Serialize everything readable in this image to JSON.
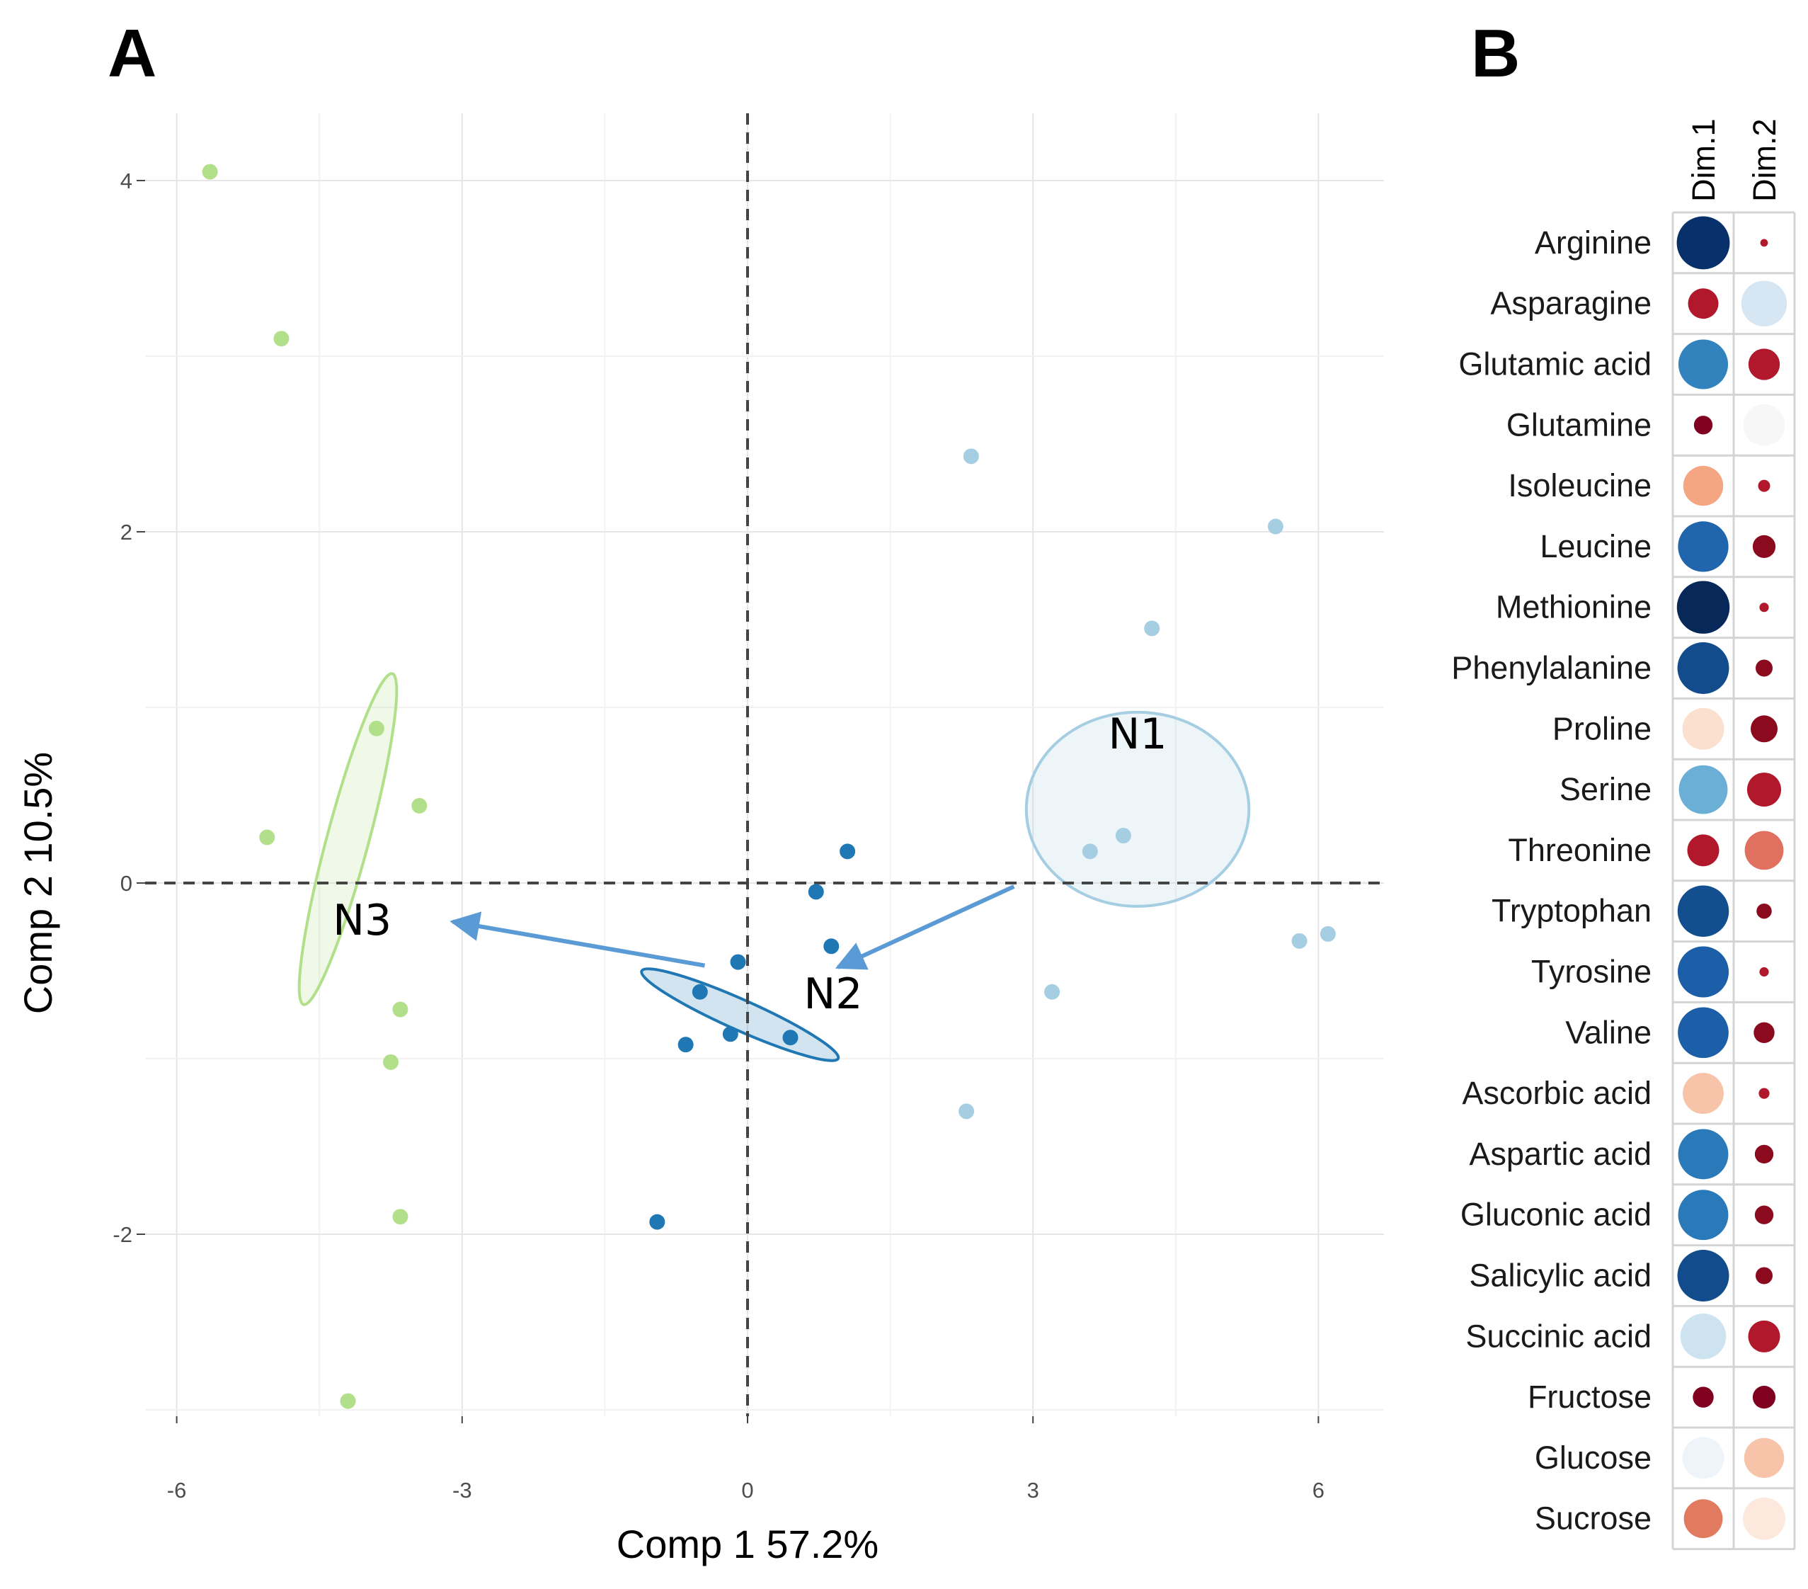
{
  "panel_a_letter": "A",
  "panel_b_letter": "B",
  "colors": {
    "N1": "#a6cee3",
    "N2": "#1f78b4",
    "N3": "#b2df8a",
    "arrow": "#5b9bd5",
    "grid": "#ebebeb",
    "refline": "#444444"
  },
  "chart_data": [
    {
      "type": "scatter",
      "title": "",
      "xlabel": "Comp 1 57.2%",
      "ylabel": "Comp 2 10.5%",
      "xlim": [
        -6.6,
        6.2
      ],
      "ylim": [
        -3.3,
        4.45
      ],
      "xticks": [
        -6,
        -3,
        0,
        3,
        6
      ],
      "xtick_labels": [
        "-6",
        "-3",
        "0",
        "3",
        "6"
      ],
      "yticks": [
        -2,
        0,
        2,
        4
      ],
      "ytick_labels": [
        "-2",
        "0",
        "2",
        "4"
      ],
      "reference_lines": {
        "x": 0,
        "y": 0
      },
      "series": [
        {
          "name": "N1",
          "color": "#a6cee3",
          "points": [
            [
              2.35,
              2.43
            ],
            [
              5.55,
              2.03
            ],
            [
              4.25,
              1.45
            ],
            [
              3.6,
              0.18
            ],
            [
              3.95,
              0.27
            ],
            [
              5.8,
              -0.33
            ],
            [
              6.1,
              -0.29
            ],
            [
              3.2,
              -0.62
            ],
            [
              2.3,
              -1.3
            ]
          ],
          "ellipse": {
            "center": [
              4.1,
              0.42
            ],
            "semi_axes": [
              1.17,
              1.02
            ],
            "rotation_deg": 0
          }
        },
        {
          "name": "N2",
          "color": "#1f78b4",
          "points": [
            [
              1.05,
              0.18
            ],
            [
              0.72,
              -0.05
            ],
            [
              0.88,
              -0.36
            ],
            [
              -0.1,
              -0.45
            ],
            [
              -0.5,
              -0.62
            ],
            [
              -0.18,
              -0.86
            ],
            [
              0.45,
              -0.88
            ],
            [
              -0.65,
              -0.92
            ],
            [
              -0.95,
              -1.93
            ]
          ],
          "ellipse": {
            "center": [
              -0.08,
              -0.75
            ],
            "semi_axes": [
              1.13,
              0.16
            ],
            "rotation_deg": 24
          }
        },
        {
          "name": "N3",
          "color": "#b2df8a",
          "points": [
            [
              -5.65,
              4.05
            ],
            [
              -4.9,
              3.1
            ],
            [
              -3.9,
              0.88
            ],
            [
              -3.45,
              0.44
            ],
            [
              -5.05,
              0.26
            ],
            [
              -3.65,
              -0.72
            ],
            [
              -3.75,
              -1.02
            ],
            [
              -3.65,
              -1.9
            ],
            [
              -4.2,
              -2.95
            ]
          ],
          "ellipse": {
            "center": [
              -4.2,
              0.25
            ],
            "semi_axes": [
              1.8,
              0.22
            ],
            "rotation_deg": -75
          }
        }
      ],
      "annotations": [
        {
          "text": "N1",
          "x": 4.1,
          "y": 0.85
        },
        {
          "text": "N2",
          "x": 0.9,
          "y": -0.63
        },
        {
          "text": "N3",
          "x": -4.05,
          "y": -0.21
        }
      ],
      "arrows": [
        {
          "from": [
            2.8,
            -0.02
          ],
          "to": [
            0.95,
            -0.48
          ]
        },
        {
          "from": [
            -0.45,
            -0.47
          ],
          "to": [
            -3.1,
            -0.22
          ]
        }
      ]
    },
    {
      "type": "heatmap",
      "style": "correlation-circles",
      "columns": [
        "Dim.1",
        "Dim.2"
      ],
      "rows": [
        "Arginine",
        "Asparagine",
        "Glutamic acid",
        "Glutamine",
        "Isoleucine",
        "Leucine",
        "Methionine",
        "Phenylalanine",
        "Proline",
        "Serine",
        "Threonine",
        "Tryptophan",
        "Tyrosine",
        "Valine",
        "Ascorbic acid",
        "Aspartic acid",
        "Gluconic acid",
        "Salicylic acid",
        "Succinic acid",
        "Fructose",
        "Glucose",
        "Sucrose"
      ],
      "values": [
        [
          0.97,
          0.02
        ],
        [
          -0.32,
          0.72
        ],
        [
          0.85,
          -0.34
        ],
        [
          0.12,
          0.6
        ],
        [
          -0.55,
          0.05
        ],
        [
          0.88,
          -0.18
        ],
        [
          0.96,
          0.03
        ],
        [
          0.92,
          -0.1
        ],
        [
          -0.6,
          -0.25
        ],
        [
          0.82,
          -0.4
        ],
        [
          -0.35,
          -0.52
        ],
        [
          0.91,
          -0.08
        ],
        [
          0.9,
          0.03
        ],
        [
          0.89,
          -0.15
        ],
        [
          -0.58,
          0.04
        ],
        [
          0.87,
          -0.12
        ],
        [
          0.87,
          -0.12
        ],
        [
          0.92,
          -0.1
        ],
        [
          0.72,
          -0.35
        ],
        [
          -0.15,
          -0.18
        ],
        [
          0.6,
          -0.55
        ],
        [
          -0.52,
          -0.62
        ]
      ],
      "colors": [
        [
          "#08306b",
          "#b2182b"
        ],
        [
          "#b2182b",
          "#d6e6f2"
        ],
        [
          "#3182bd",
          "#b2182b"
        ],
        [
          "#800020",
          "#f7f7f7"
        ],
        [
          "#f4a582",
          "#b2182b"
        ],
        [
          "#2166ac",
          "#8b0a1e"
        ],
        [
          "#08285a",
          "#b2182b"
        ],
        [
          "#124c8c",
          "#8b0a1e"
        ],
        [
          "#fbe0d0",
          "#8b0a1e"
        ],
        [
          "#6baed6",
          "#b2182b"
        ],
        [
          "#b2182b",
          "#e07060"
        ],
        [
          "#134f8f",
          "#8b0a1e"
        ],
        [
          "#1c5ea8",
          "#b2182b"
        ],
        [
          "#1c5ea8",
          "#8b0a1e"
        ],
        [
          "#f7c4aa",
          "#b2182b"
        ],
        [
          "#2a7ab9",
          "#8b0a1e"
        ],
        [
          "#2a7ab9",
          "#8b0a1e"
        ],
        [
          "#124c8c",
          "#8b0a1e"
        ],
        [
          "#cde3ef",
          "#b2182b"
        ],
        [
          "#800020",
          "#800020"
        ],
        [
          "#eef4fa",
          "#f7c4aa"
        ],
        [
          "#e07b5f",
          "#fce8dc"
        ]
      ]
    }
  ]
}
